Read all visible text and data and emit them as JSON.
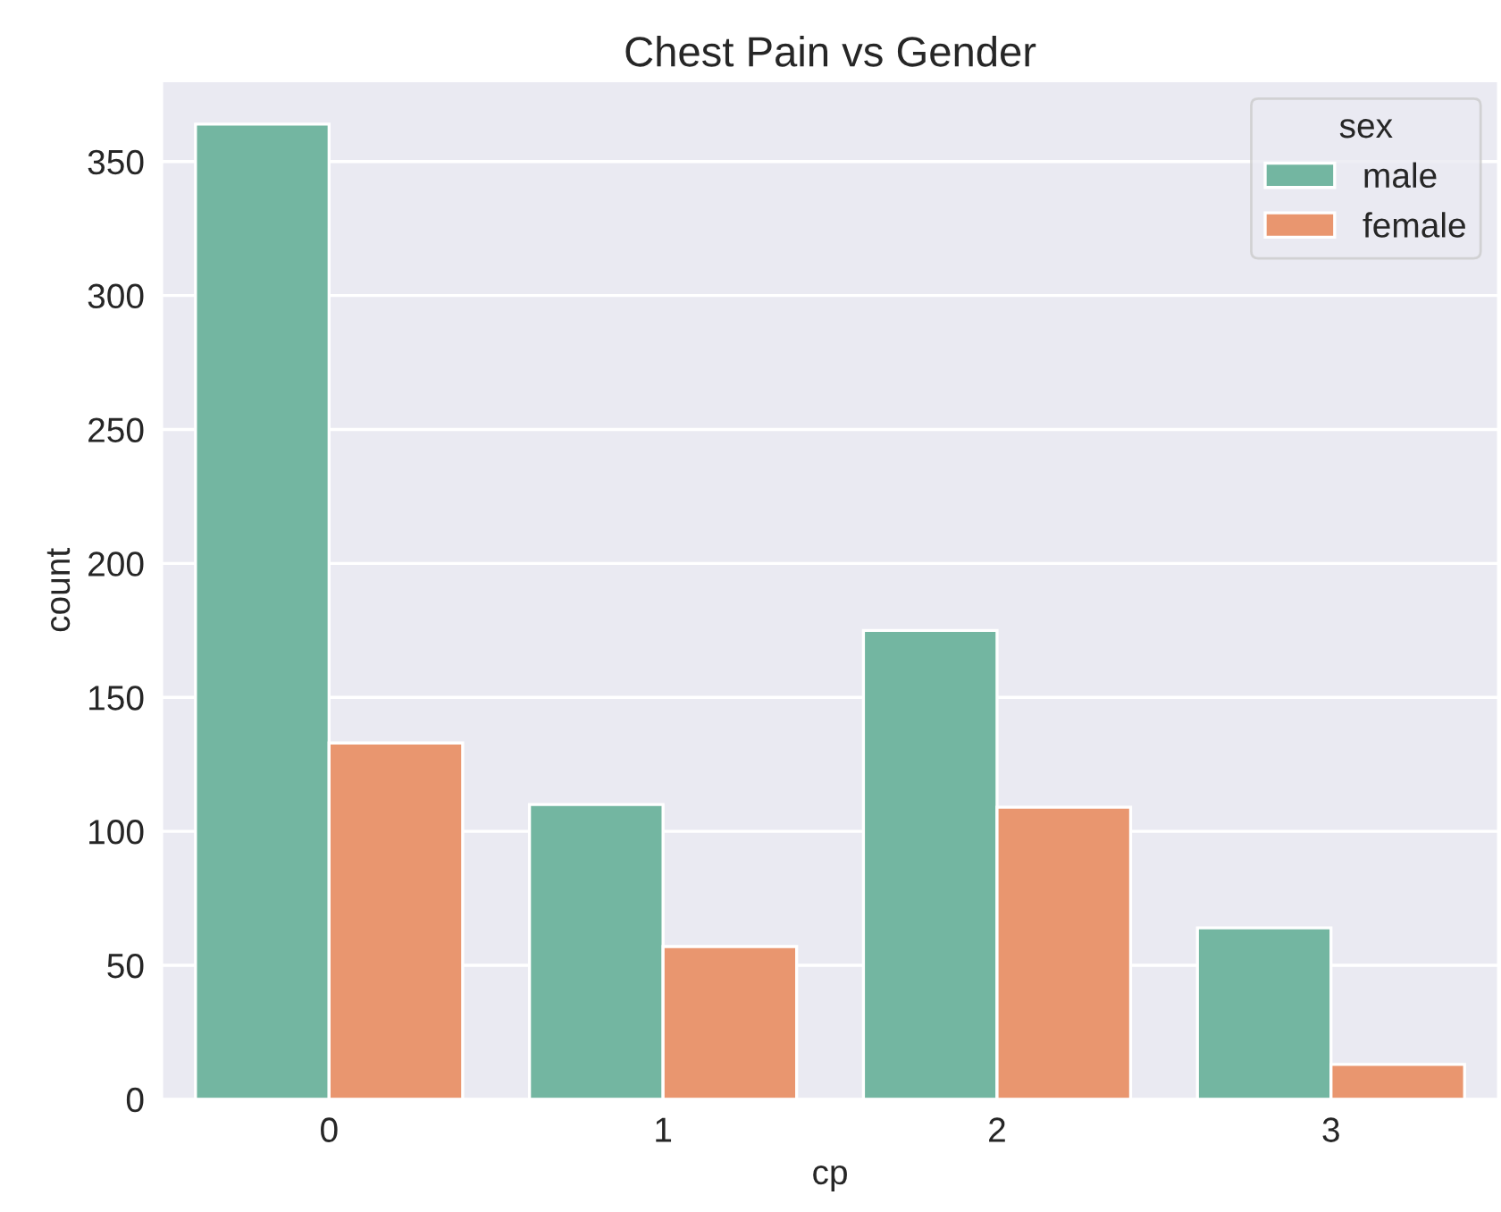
{
  "chart_data": {
    "type": "bar",
    "title": "Chest Pain vs Gender",
    "xlabel": "cp",
    "ylabel": "count",
    "legend_title": "sex",
    "categories": [
      "0",
      "1",
      "2",
      "3"
    ],
    "series": [
      {
        "name": "male",
        "color": "#73b6a1",
        "values": [
          364,
          110,
          175,
          64
        ]
      },
      {
        "name": "female",
        "color": "#e9966f",
        "values": [
          133,
          57,
          109,
          13
        ]
      }
    ],
    "ylim": [
      0,
      380
    ],
    "yticks": [
      0,
      50,
      100,
      150,
      200,
      250,
      300,
      350
    ],
    "grid": "y",
    "legend": "top right"
  }
}
